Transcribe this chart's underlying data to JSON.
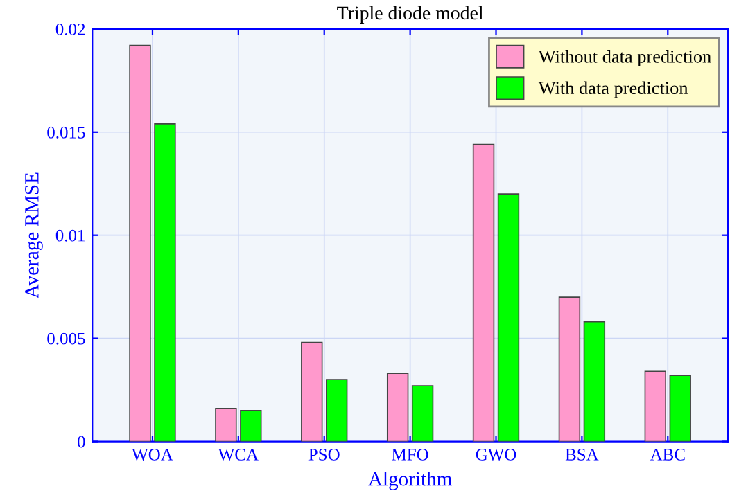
{
  "chart_data": {
    "type": "bar",
    "title": "Triple diode model",
    "xlabel": "Algorithm",
    "ylabel": "Average RMSE",
    "categories": [
      "WOA",
      "WCA",
      "PSO",
      "MFO",
      "GWO",
      "BSA",
      "ABC"
    ],
    "series": [
      {
        "name": "Without data prediction",
        "color": "#ff99cc",
        "values": [
          0.0192,
          0.0016,
          0.0048,
          0.0033,
          0.0144,
          0.007,
          0.0034
        ]
      },
      {
        "name": "With data prediction",
        "color": "#00ff00",
        "values": [
          0.0154,
          0.0015,
          0.003,
          0.0027,
          0.012,
          0.0058,
          0.0032
        ]
      }
    ],
    "ylim": [
      0,
      0.02
    ],
    "yticks": [
      0,
      0.005,
      0.01,
      0.015,
      0.02
    ],
    "grid": true,
    "legend": "top right"
  }
}
